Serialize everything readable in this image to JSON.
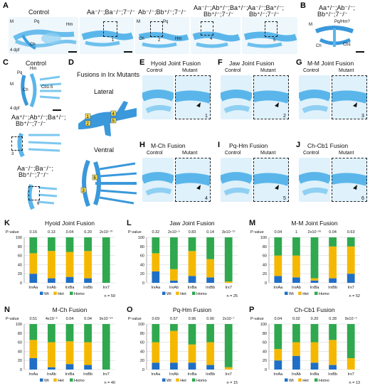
{
  "panels": {
    "A": {
      "label": "A",
      "images": [
        {
          "title": "Control",
          "labels": [
            "M",
            "Pq",
            "Hm",
            "Ch",
            "4 dpf"
          ]
        },
        {
          "title": "Aa⁻/⁻;Ba⁻/⁻;7⁻/⁻",
          "box": "1"
        },
        {
          "title": "Ab⁻/⁻;Bb⁺/⁻;7⁻/⁻",
          "labels": [
            "M",
            "Pq",
            "Ch",
            "Hm"
          ],
          "box": "2"
        },
        {
          "title": "Aa⁻/⁻;Ab⁺/⁻;Ba⁺/⁻;",
          "title2": "Bb⁺/⁻;7⁻/⁻",
          "box": "4"
        },
        {
          "title": "Aa⁻/⁻;Ba⁺/⁻;",
          "title2": "Bb⁺/⁻;7⁻/⁻",
          "box": "5"
        }
      ]
    },
    "B": {
      "label": "B",
      "title": "Aa⁺/⁻;Ab⁻/⁻;",
      "title2": "Bb⁺/⁻;7⁻/⁻",
      "labels": [
        "M",
        "Pq/Hm?",
        "Ch",
        "Cb1"
      ]
    },
    "C": {
      "label": "C",
      "images": [
        {
          "title": "Control",
          "labels": [
            "Pq",
            "Hm",
            "M",
            "Ch",
            "Cb1-5",
            "4 dpf"
          ]
        },
        {
          "title": "Aa⁺/⁻;Ab⁺/⁻;Ba⁺/⁻;",
          "title2": "Bb⁺/⁻;7⁻/⁻",
          "box": "3"
        },
        {
          "title": "Aa⁻/⁻;Ba⁻/⁻;",
          "title2": "Bb⁺/⁻;7⁻/⁻",
          "box": "6"
        }
      ]
    },
    "D": {
      "label": "D",
      "title": "Fusions in Irx Mutants",
      "lateral": "Lateral",
      "ventral": "Ventral",
      "numbers": [
        "1",
        "2",
        "4",
        "5",
        "3",
        "6"
      ]
    },
    "E": {
      "label": "E",
      "title": "Hyoid Joint Fusion",
      "control": "Control",
      "mutant": "Mutant",
      "num": "1"
    },
    "F": {
      "label": "F",
      "title": "Jaw Joint Fusion",
      "control": "Control",
      "mutant": "Mutant",
      "num": "2"
    },
    "G": {
      "label": "G",
      "title": "M-M Joint Fusion",
      "control": "Control",
      "mutant": "Mutant",
      "num": "3"
    },
    "H": {
      "label": "H",
      "title": "M-Ch Fusion",
      "control": "Control",
      "mutant": "Mutant",
      "num": "4"
    },
    "I": {
      "label": "I",
      "title": "Pq-Hm Fusion",
      "control": "Control",
      "mutant": "Mutant",
      "num": "5"
    },
    "J": {
      "label": "J",
      "title": "Ch-Cb1 Fusion",
      "control": "Control",
      "mutant": "Mutant",
      "num": "6"
    }
  },
  "colors": {
    "wt": "#1f6fc7",
    "het": "#f5b800",
    "homo": "#2fa84f",
    "cartilage": "#5ab6ea",
    "cartilage_light": "#cfe9f9"
  },
  "legend": {
    "wt": "Wt",
    "het": "Het",
    "homo": "Homo"
  },
  "chart_data": [
    {
      "panel": "K",
      "type": "bar",
      "title": "Hyoid Joint Fusion",
      "categories": [
        "IrxAa",
        "IrxAb",
        "IrxBa",
        "IrxBb",
        "Irx7"
      ],
      "pvalue_label": "P-value",
      "pvalues": [
        "0.16",
        "0.13",
        "0.04",
        "0.20",
        "2x10⁻³⁷"
      ],
      "series": [
        {
          "name": "Wt",
          "values": [
            20,
            10,
            13,
            10,
            0
          ]
        },
        {
          "name": "Het",
          "values": [
            45,
            60,
            55,
            60,
            0
          ]
        },
        {
          "name": "Homo",
          "values": [
            35,
            30,
            32,
            30,
            100
          ]
        }
      ],
      "ylim": [
        0,
        100
      ],
      "yticks": [
        0,
        20,
        40,
        60,
        80,
        100
      ],
      "n": "n = 59"
    },
    {
      "panel": "L",
      "type": "bar",
      "title": "Jaw Joint Fusion",
      "categories": [
        "IrxAa",
        "IrxAb",
        "IrxBa",
        "IrxBb",
        "Irx7"
      ],
      "pvalue_label": "P-value",
      "pvalues": [
        "0.32",
        "2x10⁻⁵",
        "0.83",
        "0.14",
        "3x10⁻¹⁵"
      ],
      "series": [
        {
          "name": "Wt",
          "values": [
            25,
            5,
            15,
            12,
            0
          ]
        },
        {
          "name": "Het",
          "values": [
            40,
            25,
            55,
            40,
            3
          ]
        },
        {
          "name": "Homo",
          "values": [
            35,
            70,
            30,
            48,
            97
          ]
        }
      ],
      "ylim": [
        0,
        100
      ],
      "yticks": [
        0,
        20,
        40,
        60,
        80,
        100
      ],
      "n": "n = 25"
    },
    {
      "panel": "M",
      "type": "bar",
      "title": "M-M Joint Fusion",
      "categories": [
        "IrxAa",
        "IrxAb",
        "IrxBa",
        "IrxBb",
        "Irx7"
      ],
      "pvalue_label": "P-value",
      "pvalues": [
        "0.04",
        "1",
        "2x10⁻²⁶",
        "0.04",
        "0.63"
      ],
      "series": [
        {
          "name": "Wt",
          "values": [
            15,
            12,
            5,
            10,
            20
          ]
        },
        {
          "name": "Het",
          "values": [
            45,
            48,
            5,
            70,
            60
          ]
        },
        {
          "name": "Homo",
          "values": [
            40,
            40,
            90,
            20,
            20
          ]
        }
      ],
      "ylim": [
        0,
        100
      ],
      "yticks": [
        0,
        20,
        40,
        60,
        80,
        100
      ],
      "n": "n = 52"
    },
    {
      "panel": "N",
      "type": "bar",
      "title": "M-Ch Fusion",
      "categories": [
        "IrxAa",
        "IrxAb",
        "IrxBa",
        "IrxBb",
        "Irx7"
      ],
      "pvalue_label": "P-value",
      "pvalues": [
        "0.51",
        "4x10⁻⁵",
        "0.04",
        "0.04",
        "9x10⁻²⁴"
      ],
      "series": [
        {
          "name": "Wt",
          "values": [
            25,
            5,
            12,
            10,
            0
          ]
        },
        {
          "name": "Het",
          "values": [
            40,
            55,
            50,
            50,
            0
          ]
        },
        {
          "name": "Homo",
          "values": [
            35,
            40,
            38,
            40,
            100
          ]
        }
      ],
      "ylim": [
        0,
        100
      ],
      "yticks": [
        0,
        20,
        40,
        60,
        80,
        100
      ],
      "n": "n = 40"
    },
    {
      "panel": "O",
      "type": "bar",
      "title": "Pq-Hm Fusion",
      "categories": [
        "IrxAa",
        "IrxAb",
        "IrxBa",
        "IrxBb",
        "Irx7"
      ],
      "pvalue_label": "P-value",
      "pvalues": [
        "0.69",
        "0.57",
        "0.96",
        "0.90",
        "2x10⁻⁷"
      ],
      "series": [
        {
          "name": "Wt",
          "values": [
            15,
            15,
            15,
            10,
            0
          ]
        },
        {
          "name": "Het",
          "values": [
            45,
            70,
            40,
            50,
            5
          ]
        },
        {
          "name": "Homo",
          "values": [
            40,
            15,
            45,
            40,
            95
          ]
        }
      ],
      "ylim": [
        0,
        100
      ],
      "yticks": [
        0,
        20,
        40,
        60,
        80,
        100
      ],
      "n": "n = 15"
    },
    {
      "panel": "P",
      "type": "bar",
      "title": "Ch-Cb1 Fusion",
      "categories": [
        "IrxAa",
        "IrxAb",
        "IrxBa",
        "IrxBb",
        "Irx7"
      ],
      "pvalue_label": "P-value",
      "pvalues": [
        "0.04",
        "0.02",
        "0.20",
        "0.28",
        "9x10⁻⁴"
      ],
      "series": [
        {
          "name": "Wt",
          "values": [
            20,
            30,
            15,
            10,
            0
          ]
        },
        {
          "name": "Het",
          "values": [
            25,
            30,
            45,
            55,
            25
          ]
        },
        {
          "name": "Homo",
          "values": [
            55,
            40,
            40,
            35,
            75
          ]
        }
      ],
      "ylim": [
        0,
        100
      ],
      "yticks": [
        0,
        20,
        40,
        60,
        80,
        100
      ],
      "n": "n = 13"
    }
  ]
}
